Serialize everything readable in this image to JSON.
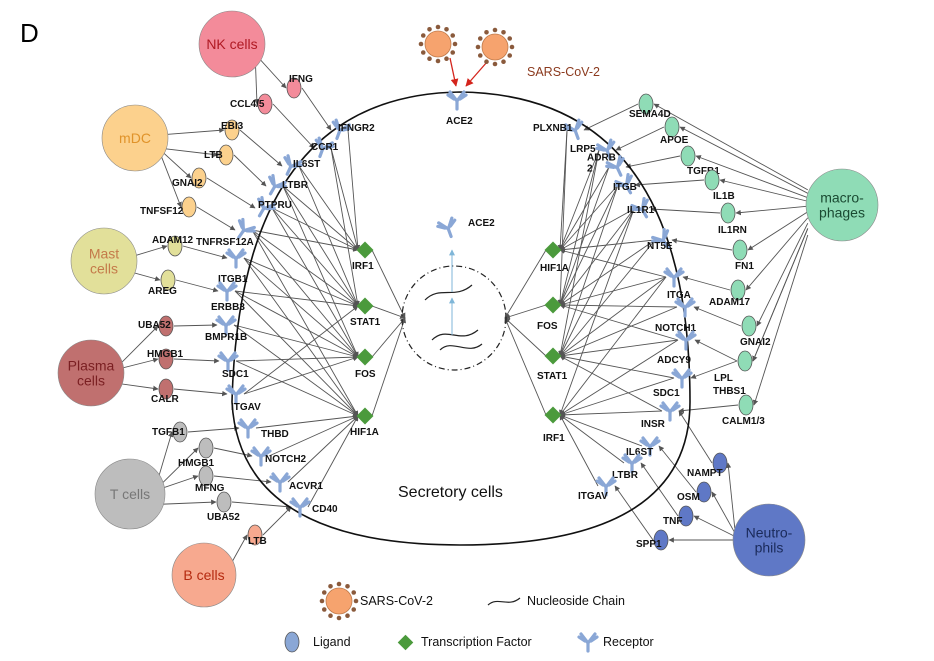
{
  "panel_label": "D",
  "center_label": "Secretory cells",
  "virus_label": "SARS-CoV-2",
  "ace2_top": "ACE2",
  "ace2_inner": "ACE2",
  "cells": {
    "nk": "NK cells",
    "mdc": "mDC",
    "mast": "Mast\ncells",
    "plasma": "Plasma\ncells",
    "t": "T cells",
    "b": "B cells",
    "macrophages": "macro-\nphages",
    "neutrophils": "Neutro-\nphils"
  },
  "left_ligands": [
    "IFNG",
    "CCL4/5",
    "EBI3",
    "LTB",
    "GNAI2",
    "TNFSF12",
    "ADAM12",
    "AREG",
    "UBA52",
    "HMGB1",
    "CALR",
    "TGFB1",
    "HMGB1",
    "MFNG",
    "UBA52",
    "LTB"
  ],
  "left_receptors": [
    "IFNGR2",
    "CCR1",
    "IL6ST",
    "LTBR",
    "PTPRU",
    "TNFRSF12A",
    "ITGB1",
    "ERBB3",
    "BMPR1B",
    "SDC1",
    "ITGAV",
    "THBD",
    "NOTCH2",
    "ACVR1",
    "CD40"
  ],
  "left_tfs": [
    "IRF1",
    "STAT1",
    "FOS",
    "HIF1A"
  ],
  "right_ligands": [
    "SEMA4D",
    "APOE",
    "TGFB1",
    "IL1B",
    "IL1RN",
    "FN1",
    "ADAM17",
    "GNAI2",
    "LPL",
    "THBS1",
    "CALM1/3",
    "NAMPT",
    "OSM",
    "TNF",
    "SPP1"
  ],
  "right_receptors": [
    "PLXNB1",
    "LRP5",
    "ADRB\n2",
    "ITGB",
    "IL1R1",
    "NT5E",
    "ITGA",
    "NOTCH1",
    "ADCY9",
    "SDC1",
    "INSR",
    "IL6ST",
    "LTBR",
    "ITGAV"
  ],
  "right_tfs": [
    "HIF1A",
    "FOS",
    "STAT1",
    "IRF1"
  ],
  "legend": {
    "virus": "SARS-CoV-2",
    "chain": "Nucleoside Chain",
    "ligand": "Ligand",
    "tf": "Transcription Factor",
    "receptor": "Receptor"
  },
  "colors": {
    "nk": "#f38b9a",
    "mdc": "#fcd18d",
    "mast": "#e2e09a",
    "plasma": "#c0706f",
    "t": "#bdbdbd",
    "b": "#f7a98f",
    "macrophages": "#8fdcb6",
    "neutrophils": "#5f78c6",
    "receptor": "#8aa7d6",
    "tf": "#4b9a3c",
    "virus": "#f6a36e",
    "arrow": "#555555",
    "virus_arrow": "#d4241c"
  }
}
